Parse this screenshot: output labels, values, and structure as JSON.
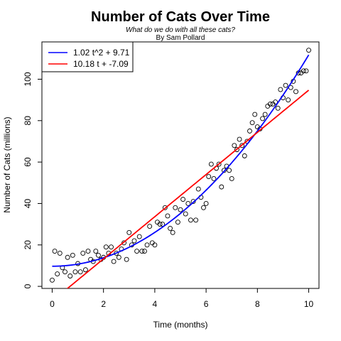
{
  "chart_data": {
    "type": "scatter",
    "title": "Number of Cats Over Time",
    "subtitle": "What do we do with all these cats?",
    "author": "By Sam Pollard",
    "xlabel": "Time (months)",
    "ylabel": "Number of Cats (millions)",
    "xlim": [
      -0.4,
      10.4
    ],
    "ylim": [
      -1,
      118
    ],
    "x_ticks": [
      0,
      2,
      4,
      6,
      8,
      10
    ],
    "y_ticks": [
      0,
      20,
      40,
      60,
      80,
      100
    ],
    "x_tick_labels": [
      "0",
      "2",
      "4",
      "6",
      "8",
      "10"
    ],
    "y_tick_labels": [
      "0",
      "20",
      "40",
      "60",
      "80",
      "100"
    ],
    "grid": false,
    "legend_position": "top-left",
    "points": {
      "x": [
        0.0,
        0.1,
        0.2,
        0.3,
        0.4,
        0.5,
        0.6,
        0.7,
        0.8,
        0.9,
        1.0,
        1.1,
        1.2,
        1.3,
        1.4,
        1.5,
        1.6,
        1.7,
        1.8,
        1.9,
        2.0,
        2.1,
        2.2,
        2.3,
        2.4,
        2.5,
        2.6,
        2.7,
        2.8,
        2.9,
        3.0,
        3.1,
        3.2,
        3.3,
        3.4,
        3.5,
        3.6,
        3.7,
        3.8,
        3.9,
        4.0,
        4.1,
        4.2,
        4.3,
        4.4,
        4.5,
        4.6,
        4.7,
        4.8,
        4.9,
        5.0,
        5.1,
        5.2,
        5.3,
        5.4,
        5.5,
        5.6,
        5.7,
        5.8,
        5.9,
        6.0,
        6.1,
        6.2,
        6.3,
        6.4,
        6.5,
        6.6,
        6.7,
        6.8,
        6.9,
        7.0,
        7.1,
        7.2,
        7.3,
        7.4,
        7.5,
        7.6,
        7.7,
        7.8,
        7.9,
        8.0,
        8.1,
        8.2,
        8.3,
        8.4,
        8.5,
        8.6,
        8.7,
        8.8,
        8.9,
        9.0,
        9.1,
        9.2,
        9.3,
        9.4,
        9.5,
        9.6,
        9.7,
        9.8,
        9.9,
        10.0
      ],
      "y": [
        3,
        17,
        6,
        16,
        9,
        7,
        14,
        5,
        15,
        7,
        11,
        7,
        16,
        8,
        17,
        13,
        12,
        17,
        15,
        13,
        14,
        19,
        16,
        19,
        12,
        16,
        14,
        18,
        21,
        13,
        26,
        20,
        22,
        17,
        24,
        17,
        17,
        20,
        29,
        21,
        20,
        31,
        30,
        30,
        38,
        34,
        28,
        26,
        38,
        31,
        37,
        42,
        35,
        40,
        32,
        41,
        32,
        47,
        43,
        38,
        40,
        53,
        59,
        52,
        57,
        59,
        48,
        56,
        58,
        56,
        52,
        68,
        66,
        71,
        68,
        63,
        70,
        75,
        79,
        83,
        77,
        76,
        81,
        83,
        87,
        88,
        88,
        89,
        86,
        95,
        91,
        97,
        90,
        96,
        99,
        94,
        103,
        103,
        104,
        104,
        114
      ]
    },
    "series": [
      {
        "name": "1.02 t^2 + 9.71",
        "color": "#0000ff",
        "kind": "quadratic",
        "a": 1.02,
        "b": 0,
        "c": 9.71
      },
      {
        "name": "10.18 t + -7.09",
        "color": "#ff0000",
        "kind": "linear",
        "m": 10.18,
        "c": -7.09
      }
    ]
  }
}
